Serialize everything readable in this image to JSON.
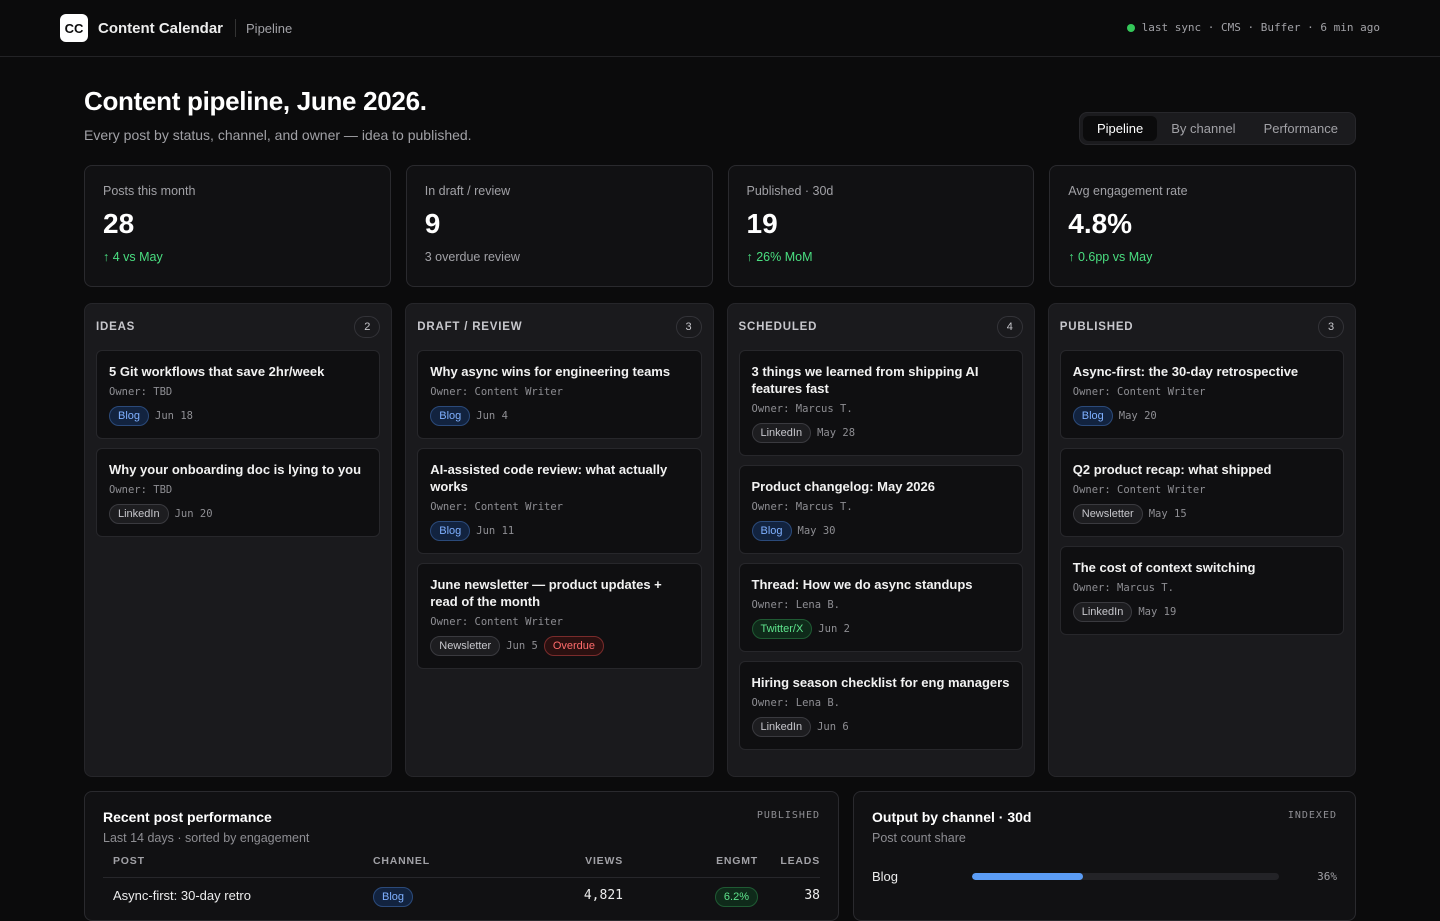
{
  "app": {
    "logo": "CC",
    "title": "Content Calendar",
    "crumb": "Pipeline",
    "sync": "last sync · CMS · Buffer · 6 min ago",
    "sync_color": "#34c759"
  },
  "header": {
    "title": "Content pipeline, June 2026.",
    "subtitle": "Every post by status, channel, and owner — idea to published."
  },
  "tabs": [
    {
      "label": "Pipeline",
      "active": true
    },
    {
      "label": "By channel",
      "active": false
    },
    {
      "label": "Performance",
      "active": false
    }
  ],
  "kpis": [
    {
      "label": "Posts this month",
      "value": "28",
      "delta": "↑ 4 vs May",
      "trend": "up"
    },
    {
      "label": "In draft / review",
      "value": "9",
      "delta": "3 overdue review",
      "trend": "neutral"
    },
    {
      "label": "Published · 30d",
      "value": "19",
      "delta": "↑ 26% MoM",
      "trend": "up"
    },
    {
      "label": "Avg engagement rate",
      "value": "4.8%",
      "delta": "↑ 0.6pp vs May",
      "trend": "up"
    }
  ],
  "columns": [
    {
      "title": "IDEAS",
      "count": "2",
      "cards": [
        {
          "title": "5 Git workflows that save 2hr/week",
          "owner": "Owner: TBD",
          "channel": "Blog",
          "date": "Jun 18"
        },
        {
          "title": "Why your onboarding doc is lying to you",
          "owner": "Owner: TBD",
          "channel": "LinkedIn",
          "date": "Jun 20"
        }
      ]
    },
    {
      "title": "DRAFT / REVIEW",
      "count": "3",
      "cards": [
        {
          "title": "Why async wins for engineering teams",
          "owner": "Owner: Content Writer",
          "channel": "Blog",
          "date": "Jun 4"
        },
        {
          "title": "AI-assisted code review: what actually works",
          "owner": "Owner: Content Writer",
          "channel": "Blog",
          "date": "Jun 11"
        },
        {
          "title": "June newsletter — product updates + read of the month",
          "owner": "Owner: Content Writer",
          "channel": "Newsletter",
          "date": "Jun 5",
          "flag": "Overdue"
        }
      ]
    },
    {
      "title": "SCHEDULED",
      "count": "4",
      "cards": [
        {
          "title": "3 things we learned from shipping AI features fast",
          "owner": "Owner: Marcus T.",
          "channel": "LinkedIn",
          "date": "May 28"
        },
        {
          "title": "Product changelog: May 2026",
          "owner": "Owner: Marcus T.",
          "channel": "Blog",
          "date": "May 30"
        },
        {
          "title": "Thread: How we do async standups",
          "owner": "Owner: Lena B.",
          "channel": "Twitter/X",
          "date": "Jun 2"
        },
        {
          "title": "Hiring season checklist for eng managers",
          "owner": "Owner: Lena B.",
          "channel": "LinkedIn",
          "date": "Jun 6"
        }
      ]
    },
    {
      "title": "PUBLISHED",
      "count": "3",
      "cards": [
        {
          "title": "Async-first: the 30-day retrospective",
          "owner": "Owner: Content Writer",
          "channel": "Blog",
          "date": "May 20"
        },
        {
          "title": "Q2 product recap: what shipped",
          "owner": "Owner: Content Writer",
          "channel": "Newsletter",
          "date": "May 15"
        },
        {
          "title": "The cost of context switching",
          "owner": "Owner: Marcus T.",
          "channel": "LinkedIn",
          "date": "May 19"
        }
      ]
    }
  ],
  "performance": {
    "title": "Recent post performance",
    "subtitle": "Last 14 days · sorted by engagement",
    "tag": "PUBLISHED",
    "headers": {
      "post": "POST",
      "channel": "CHANNEL",
      "views": "VIEWS",
      "engmt": "ENGMT",
      "leads": "LEADS"
    },
    "rows": [
      {
        "post": "Async-first: 30-day retro",
        "channel": "Blog",
        "views": "4,821",
        "engmt": "6.2%",
        "leads": "38"
      }
    ]
  },
  "output": {
    "title": "Output by channel · 30d",
    "subtitle": "Post count share",
    "tag": "INDEXED",
    "bars": [
      {
        "label": "Blog",
        "value": "36%",
        "share": 0.36,
        "color": "#5b9cf5"
      }
    ]
  }
}
